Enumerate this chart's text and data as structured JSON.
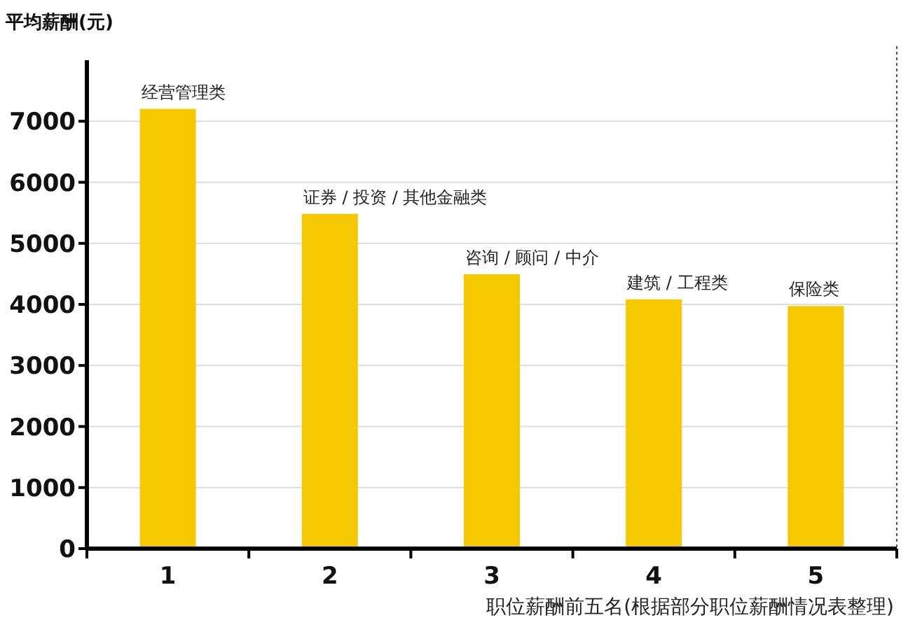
{
  "chart_data": {
    "type": "bar",
    "ylabel": "平均薪酬(元)",
    "xlabel": "职位薪酬前五名(根据部分职位薪酬情况表整理)",
    "categories": [
      "1",
      "2",
      "3",
      "4",
      "5"
    ],
    "values": [
      7180,
      5460,
      4470,
      4060,
      3950
    ],
    "color": "#f5c800",
    "ylim": [
      0,
      8000
    ],
    "yticks": [
      0,
      1000,
      2000,
      3000,
      4000,
      5000,
      6000,
      7000
    ],
    "grid": "y",
    "annotations": [
      {
        "text": "经营管理类",
        "x": "1",
        "y": 7180
      },
      {
        "text": "证券 / 投资 / 其他金融类",
        "x": "2",
        "y": 5460
      },
      {
        "text": "咨询 / 顾问 / 中介",
        "x": "3",
        "y": 4470
      },
      {
        "text": "建筑 / 工程类",
        "x": "4",
        "y": 4060
      },
      {
        "text": "保险类",
        "x": "5",
        "y": 3950
      }
    ]
  }
}
